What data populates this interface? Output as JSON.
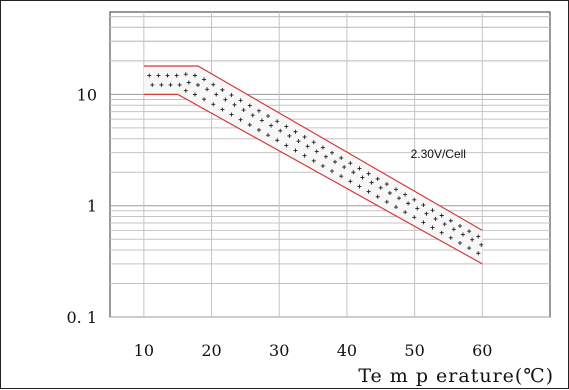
{
  "chart_data": {
    "type": "area",
    "x_scale": "linear",
    "y_scale": "log",
    "xlim": [
      5,
      70
    ],
    "ylim": [
      0.1,
      55
    ],
    "x_ticks": [
      10,
      20,
      30,
      40,
      50,
      60
    ],
    "x_tick_labels": [
      "10",
      "20",
      "30",
      "40",
      "50",
      "60"
    ],
    "y_ticks": [
      0.1,
      1,
      10
    ],
    "y_tick_labels": [
      "0. 1",
      "1",
      "10"
    ],
    "xlabel": "Te m p erature(℃)",
    "ylabel": "",
    "title": "",
    "grid": true,
    "band": {
      "upper": {
        "x": [
          10,
          18,
          60
        ],
        "y": [
          18,
          18,
          0.6
        ]
      },
      "lower": {
        "x": [
          10,
          15,
          60
        ],
        "y": [
          10,
          10,
          0.3
        ]
      },
      "edge_color": "#d43b3b",
      "marker": "+"
    },
    "annotations": [
      {
        "text": "2.30V/Cell",
        "x": 53.5,
        "y": 2.9
      }
    ]
  }
}
